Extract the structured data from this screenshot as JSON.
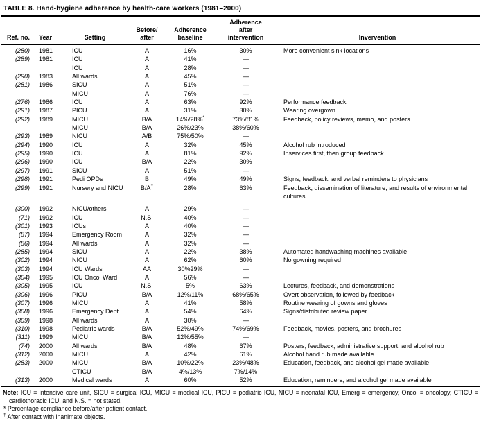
{
  "title": "TABLE 8. Hand-hygiene adherence by health-care workers (1981–2000)",
  "table": {
    "headers": {
      "ref": "Ref. no.",
      "year": "Year",
      "setting": "Setting",
      "before_after": "Before/\nafter",
      "baseline": "Adherence\nbaseline",
      "after": "Adherence\nafter\nintervention",
      "intervention": "Invervention"
    },
    "rows": [
      {
        "ref": "(280)",
        "year": "1981",
        "setting": "ICU",
        "ba": "A",
        "baseline": "16%",
        "after": "30%",
        "intervention": "More convenient sink locations"
      },
      {
        "ref": "(289)",
        "year": "1981",
        "setting": "ICU",
        "ba": "A",
        "baseline": "41%",
        "after": "—",
        "intervention": ""
      },
      {
        "ref": "",
        "year": "",
        "setting": "ICU",
        "ba": "A",
        "baseline": "28%",
        "after": "—",
        "intervention": ""
      },
      {
        "ref": "(290)",
        "year": "1983",
        "setting": "All wards",
        "ba": "A",
        "baseline": "45%",
        "after": "—",
        "intervention": ""
      },
      {
        "ref": "(281)",
        "year": "1986",
        "setting": "SICU",
        "ba": "A",
        "baseline": "51%",
        "after": "—",
        "intervention": ""
      },
      {
        "ref": "",
        "year": "",
        "setting": "MICU",
        "ba": "A",
        "baseline": "76%",
        "after": "—",
        "intervention": ""
      },
      {
        "ref": "(276)",
        "year": "1986",
        "setting": "ICU",
        "ba": "A",
        "baseline": "63%",
        "after": "92%",
        "intervention": "Performance feedback"
      },
      {
        "ref": "(291)",
        "year": "1987",
        "setting": "PICU",
        "ba": "A",
        "baseline": "31%",
        "after": "30%",
        "intervention": "Wearing overgown"
      },
      {
        "ref": "(292)",
        "year": "1989",
        "setting": "MICU",
        "ba": "B/A",
        "baseline": "14%/28%*",
        "after": "73%/81%",
        "intervention": "Feedback, policy reviews, memo, and posters"
      },
      {
        "ref": "",
        "year": "",
        "setting": "MICU",
        "ba": "B/A",
        "baseline": "26%/23%",
        "after": "38%/60%",
        "intervention": ""
      },
      {
        "ref": "(293)",
        "year": "1989",
        "setting": "NICU",
        "ba": "A/B",
        "baseline": "75%/50%",
        "after": "—",
        "intervention": ""
      },
      {
        "ref": "(294)",
        "year": "1990",
        "setting": "ICU",
        "ba": "A",
        "baseline": "32%",
        "after": "45%",
        "intervention": "Alcohol rub introduced"
      },
      {
        "ref": "(295)",
        "year": "1990",
        "setting": "ICU",
        "ba": "A",
        "baseline": "81%",
        "after": "92%",
        "intervention": "Inservices first, then group feedback"
      },
      {
        "ref": "(296)",
        "year": "1990",
        "setting": "ICU",
        "ba": "B/A",
        "baseline": "22%",
        "after": "30%",
        "intervention": ""
      },
      {
        "ref": "(297)",
        "year": "1991",
        "setting": "SICU",
        "ba": "A",
        "baseline": "51%",
        "after": "—",
        "intervention": ""
      },
      {
        "ref": "(298)",
        "year": "1991",
        "setting": "Pedi OPDs",
        "ba": "B",
        "baseline": "49%",
        "after": "49%",
        "intervention": "Signs, feedback, and verbal reminders to physicians"
      },
      {
        "ref": "(299)",
        "year": "1991",
        "setting": "Nursery and NICU",
        "ba": "B/A†",
        "baseline": "28%",
        "after": "63%",
        "intervention": "Feedback, dissemination of literature, and results of environmental cultures"
      },
      {
        "ref": "(300)",
        "year": "1992",
        "setting": "NICU/others",
        "ba": "A",
        "baseline": "29%",
        "after": "—",
        "intervention": ""
      },
      {
        "ref": "(71)",
        "year": "1992",
        "setting": "ICU",
        "ba": "N.S.",
        "baseline": "40%",
        "after": "—",
        "intervention": ""
      },
      {
        "ref": "(301)",
        "year": "1993",
        "setting": "ICUs",
        "ba": "A",
        "baseline": "40%",
        "after": "—",
        "intervention": ""
      },
      {
        "ref": "(87)",
        "year": "1994",
        "setting": "Emergency Room",
        "ba": "A",
        "baseline": "32%",
        "after": "—",
        "intervention": ""
      },
      {
        "ref": "(86)",
        "year": "1994",
        "setting": "All wards",
        "ba": "A",
        "baseline": "32%",
        "after": "—",
        "intervention": ""
      },
      {
        "ref": "(285)",
        "year": "1994",
        "setting": "SICU",
        "ba": "A",
        "baseline": "22%",
        "after": "38%",
        "intervention": "Automated handwashing machines available"
      },
      {
        "ref": "(302)",
        "year": "1994",
        "setting": "NICU",
        "ba": "A",
        "baseline": "62%",
        "after": "60%",
        "intervention": "No gowning required"
      },
      {
        "ref": "(303)",
        "year": "1994",
        "setting": "ICU Wards",
        "ba": "AA",
        "baseline": "30%29%",
        "after": "—",
        "intervention": ""
      },
      {
        "ref": "(304)",
        "year": "1995",
        "setting": "ICU Oncol Ward",
        "ba": "A",
        "baseline": "56%",
        "after": "—",
        "intervention": ""
      },
      {
        "ref": "(305)",
        "year": "1995",
        "setting": "ICU",
        "ba": "N.S.",
        "baseline": "5%",
        "after": "63%",
        "intervention": "Lectures, feedback, and demonstrations"
      },
      {
        "ref": "(306)",
        "year": "1996",
        "setting": "PICU",
        "ba": "B/A",
        "baseline": "12%/11%",
        "after": "68%/65%",
        "intervention": "Overt observation, followed by feedback"
      },
      {
        "ref": "(307)",
        "year": "1996",
        "setting": "MICU",
        "ba": "A",
        "baseline": "41%",
        "after": "58%",
        "intervention": "Routine wearing of gowns and gloves"
      },
      {
        "ref": "(308)",
        "year": "1996",
        "setting": "Emergency Dept",
        "ba": "A",
        "baseline": "54%",
        "after": "64%",
        "intervention": "Signs/distributed review paper"
      },
      {
        "ref": "(309)",
        "year": "1998",
        "setting": "All wards",
        "ba": "A",
        "baseline": "30%",
        "after": "—",
        "intervention": ""
      },
      {
        "ref": "(310)",
        "year": "1998",
        "setting": "Pediatric wards",
        "ba": "B/A",
        "baseline": "52%/49%",
        "after": "74%/69%",
        "intervention": "Feedback, movies, posters, and brochures"
      },
      {
        "ref": "(311)",
        "year": "1999",
        "setting": "MICU",
        "ba": "B/A",
        "baseline": "12%/55%",
        "after": "—",
        "intervention": ""
      },
      {
        "ref": "(74)",
        "year": "2000",
        "setting": "All wards",
        "ba": "B/A",
        "baseline": "48%",
        "after": "67%",
        "intervention": "Posters, feedback, administrative support, and alcohol rub"
      },
      {
        "ref": "(312)",
        "year": "2000",
        "setting": "MICU",
        "ba": "A",
        "baseline": "42%",
        "after": "61%",
        "intervention": "Alcohol hand rub made available"
      },
      {
        "ref": "(283)",
        "year": "2000",
        "setting": "MICU",
        "ba": "B/A",
        "baseline": "10%/22%",
        "after": "23%/48%",
        "intervention": "Education, feedback, and alcohol gel made available"
      },
      {
        "ref": "",
        "year": "",
        "setting": "CTICU",
        "ba": "B/A",
        "baseline": "4%/13%",
        "after": "7%/14%",
        "intervention": ""
      },
      {
        "ref": "(313)",
        "year": "2000",
        "setting": "Medical wards",
        "ba": "A",
        "baseline": "60%",
        "after": "52%",
        "intervention": "Education, reminders, and alcohol gel made available"
      }
    ]
  },
  "notes": {
    "note_label": "Note:",
    "note_text": " ICU = intensive care unit, SICU = surgical ICU, MICU = medical ICU, PICU = pediatric ICU, NICU = neonatal ICU, Emerg = emergency, Oncol = oncology, CTICU = cardiothoracic ICU, and N.S. = not stated.",
    "star_symbol": "*",
    "star_text": " Percentage compliance before/after patient contact.",
    "dagger_symbol": "†",
    "dagger_text": " After contact with inanimate objects."
  }
}
